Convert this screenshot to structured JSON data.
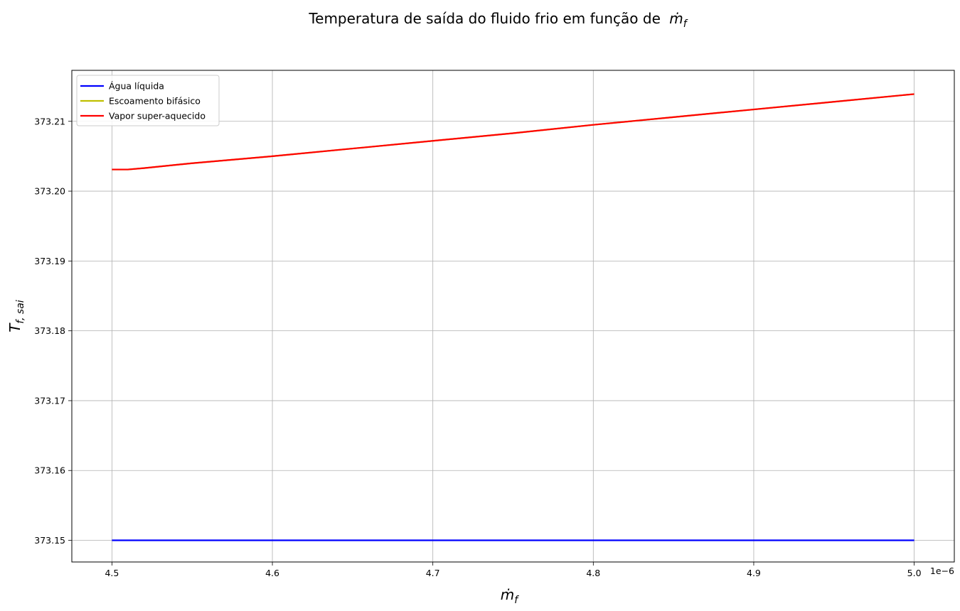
{
  "chart_data": {
    "type": "line",
    "title": "Temperatura de saída do fluido frio em função de",
    "title_math": "ṁ",
    "title_math_sub": "f",
    "xlabel_main": "ṁ",
    "xlabel_sub": "f",
    "ylabel_main": "T",
    "ylabel_sub": "f, sai",
    "x_offset_text": "1e−6",
    "xlim": [
      4.475,
      5.025
    ],
    "ylim": [
      373.1469,
      373.2173
    ],
    "x_ticks": [
      4.5,
      4.6,
      4.7,
      4.8,
      4.9,
      5.0
    ],
    "x_tick_labels": [
      "4.5",
      "4.6",
      "4.7",
      "4.8",
      "4.9",
      "5.0"
    ],
    "y_ticks": [
      373.15,
      373.16,
      373.17,
      373.18,
      373.19,
      373.2,
      373.21
    ],
    "y_tick_labels": [
      "373.15",
      "373.16",
      "373.17",
      "373.18",
      "373.19",
      "373.20",
      "373.21"
    ],
    "grid": true,
    "legend_position": "top-left",
    "series": [
      {
        "name": "Água líquida",
        "color": "#0000ff",
        "x": [
          4.5,
          5.0
        ],
        "y": [
          373.15,
          373.15
        ]
      },
      {
        "name": "Escoamento bifásico",
        "color": "#bfbf00",
        "x": [
          4.5,
          4.51,
          4.52,
          4.55,
          4.6,
          4.65,
          4.7,
          4.75,
          4.8,
          4.85,
          4.9,
          4.95,
          5.0
        ],
        "y": [
          373.2031,
          373.2031,
          373.2033,
          373.204,
          373.205,
          373.2061,
          373.2072,
          373.2083,
          373.2095,
          373.2106,
          373.2117,
          373.2128,
          373.2139
        ]
      },
      {
        "name": "Vapor super-aquecido",
        "color": "#ff0000",
        "x": [
          4.5,
          4.51,
          4.52,
          4.55,
          4.6,
          4.65,
          4.7,
          4.75,
          4.8,
          4.85,
          4.9,
          4.95,
          5.0
        ],
        "y": [
          373.2031,
          373.2031,
          373.2033,
          373.204,
          373.205,
          373.2061,
          373.2072,
          373.2083,
          373.2095,
          373.2106,
          373.2117,
          373.2128,
          373.2139
        ]
      }
    ]
  }
}
